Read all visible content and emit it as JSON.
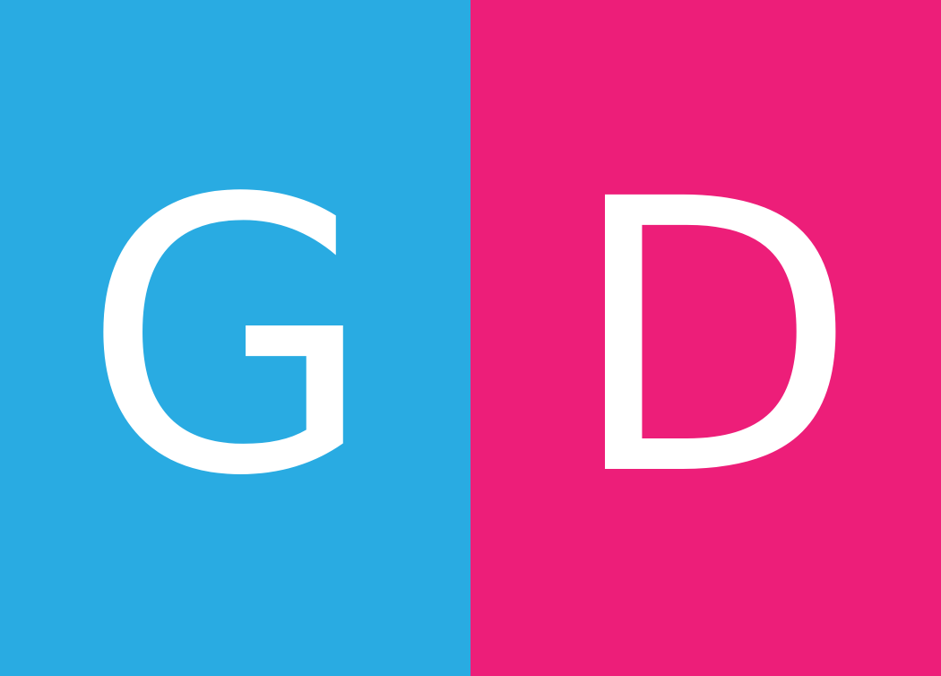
{
  "left_panel": {
    "letter": "G",
    "background_color": "#29ABE2",
    "text_color": "#FFFFFF"
  },
  "right_panel": {
    "letter": "D",
    "background_color": "#ED1E79",
    "text_color": "#FFFFFF"
  }
}
